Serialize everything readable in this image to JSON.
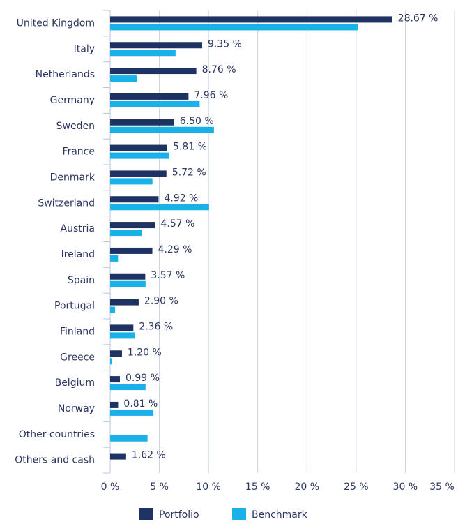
{
  "chart_data": {
    "type": "bar",
    "orientation": "horizontal",
    "categories": [
      "United Kingdom",
      "Italy",
      "Netherlands",
      "Germany",
      "Sweden",
      "France",
      "Denmark",
      "Switzerland",
      "Austria",
      "Ireland",
      "Spain",
      "Portugal",
      "Finland",
      "Greece",
      "Belgium",
      "Norway",
      "Other countries",
      "Others and cash"
    ],
    "series": [
      {
        "name": "Portfolio",
        "color": "#1f3264",
        "values": [
          28.67,
          9.35,
          8.76,
          7.96,
          6.5,
          5.81,
          5.72,
          4.92,
          4.57,
          4.29,
          3.57,
          2.9,
          2.36,
          1.2,
          0.99,
          0.81,
          null,
          1.62
        ],
        "value_labels": [
          "28.67 %",
          "9.35 %",
          "8.76 %",
          "7.96 %",
          "6.50 %",
          "5.81 %",
          "5.72 %",
          "4.92 %",
          "4.57 %",
          "4.29 %",
          "3.57 %",
          "2.90 %",
          "2.36 %",
          "1.20 %",
          "0.99 %",
          "0.81 %",
          null,
          "1.62 %"
        ]
      },
      {
        "name": "Benchmark",
        "color": "#1ab0e8",
        "values": [
          25.2,
          6.65,
          2.7,
          9.1,
          10.55,
          5.95,
          4.3,
          10.05,
          3.2,
          0.8,
          3.6,
          0.5,
          2.5,
          0.2,
          3.6,
          4.4,
          3.8,
          null
        ]
      }
    ],
    "xlim": [
      0,
      35
    ],
    "xticks": [
      {
        "value": 0,
        "label": "0 %"
      },
      {
        "value": 5,
        "label": "5 %"
      },
      {
        "value": 10,
        "label": "10 %"
      },
      {
        "value": 15,
        "label": "15 %"
      },
      {
        "value": 20,
        "label": "20 %"
      },
      {
        "value": 25,
        "label": "25 %"
      },
      {
        "value": 30,
        "label": "30 %"
      },
      {
        "value": 35,
        "label": "35 %"
      }
    ],
    "grid": true
  }
}
